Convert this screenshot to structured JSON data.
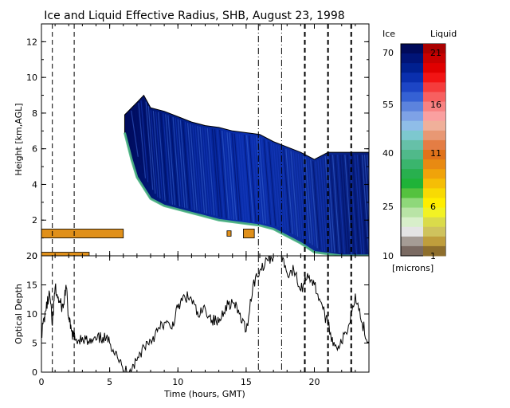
{
  "chart_data": [
    {
      "type": "heatmap",
      "title": "Ice and Liquid Effective Radius, SHB, August 23, 1998",
      "xlabel": "",
      "ylabel": "Height [km,AGL]",
      "xlim": [
        0,
        24
      ],
      "ylim": [
        0,
        13
      ],
      "x_ticks": [
        "0",
        "5",
        "10",
        "15",
        "20"
      ],
      "y_ticks": [
        "0",
        "2",
        "4",
        "6",
        "8",
        "10",
        "12"
      ],
      "grid": false,
      "ice_cloud": {
        "x_start": 6.1,
        "x_end": 24,
        "top": [
          [
            6.1,
            7.9
          ],
          [
            7.0,
            8.6
          ],
          [
            7.5,
            9.0
          ],
          [
            8.0,
            8.3
          ],
          [
            9.0,
            8.1
          ],
          [
            10.0,
            7.8
          ],
          [
            11.0,
            7.5
          ],
          [
            12.0,
            7.3
          ],
          [
            13.0,
            7.2
          ],
          [
            14.0,
            7.0
          ],
          [
            15.0,
            6.9
          ],
          [
            16.0,
            6.8
          ],
          [
            17.0,
            6.4
          ],
          [
            18.0,
            6.1
          ],
          [
            19.0,
            5.8
          ],
          [
            20.0,
            5.4
          ],
          [
            21.0,
            5.8
          ],
          [
            22.0,
            5.8
          ],
          [
            23.0,
            5.8
          ],
          [
            24.0,
            5.8
          ]
        ],
        "base": [
          [
            6.1,
            6.9
          ],
          [
            6.6,
            5.4
          ],
          [
            7.0,
            4.4
          ],
          [
            8.0,
            3.2
          ],
          [
            9.0,
            2.8
          ],
          [
            10.0,
            2.6
          ],
          [
            11.0,
            2.4
          ],
          [
            12.0,
            2.2
          ],
          [
            13.0,
            2.0
          ],
          [
            14.0,
            1.9
          ],
          [
            15.0,
            1.8
          ],
          [
            16.0,
            1.7
          ],
          [
            17.0,
            1.5
          ],
          [
            18.0,
            1.1
          ],
          [
            19.0,
            0.7
          ],
          [
            20.0,
            0.2
          ],
          [
            22.0,
            0.0
          ],
          [
            24.0,
            0.0
          ]
        ],
        "dominant_ice_radius_microns": 55
      },
      "liquid_layers": [
        {
          "x_start": 0.0,
          "x_end": 6.0,
          "base_km": 1.0,
          "top_km": 1.5,
          "radius_microns": 6
        },
        {
          "x_start": 0.0,
          "x_end": 3.5,
          "base_km": 0.0,
          "top_km": 0.2,
          "radius_microns": 6
        },
        {
          "x_start": 13.6,
          "x_end": 13.9,
          "base_km": 1.1,
          "top_km": 1.4,
          "radius_microns": 6
        },
        {
          "x_start": 14.8,
          "x_end": 15.6,
          "base_km": 1.0,
          "top_km": 1.5,
          "radius_microns": 6
        }
      ],
      "vertical_lines": [
        {
          "x": 0.8,
          "style": "dashed"
        },
        {
          "x": 2.4,
          "style": "dashed"
        },
        {
          "x": 15.9,
          "style": "dashdot"
        },
        {
          "x": 17.6,
          "style": "dashdot"
        },
        {
          "x": 19.3,
          "style": "dashed"
        },
        {
          "x": 21.0,
          "style": "dashed"
        },
        {
          "x": 22.7,
          "style": "dashed"
        }
      ]
    },
    {
      "type": "line",
      "title": "",
      "xlabel": "Time (hours, GMT)",
      "ylabel": "Optical Depth",
      "xlim": [
        0,
        24
      ],
      "ylim": [
        0,
        20
      ],
      "x_ticks": [
        "0",
        "5",
        "10",
        "15",
        "20"
      ],
      "y_ticks": [
        "0",
        "5",
        "10",
        "15",
        "20"
      ],
      "grid": false,
      "series": [
        {
          "name": "",
          "x": [
            0,
            0.3,
            0.6,
            0.8,
            1.0,
            1.3,
            1.6,
            1.8,
            2.0,
            2.2,
            2.5,
            3.0,
            3.5,
            4.0,
            4.5,
            5.0,
            5.5,
            6.0,
            6.5,
            7.0,
            7.5,
            8.0,
            8.5,
            9.0,
            9.5,
            10.0,
            10.5,
            11.0,
            11.5,
            12.0,
            12.5,
            13.0,
            13.5,
            14.0,
            14.5,
            15.0,
            15.5,
            16.0,
            16.5,
            17.0,
            17.5,
            18.0,
            18.5,
            19.0,
            19.5,
            20.0,
            20.5,
            21.0,
            21.5,
            22.0,
            22.5,
            23.0,
            23.5,
            24.0
          ],
          "y": [
            6.5,
            10.5,
            13.5,
            8.0,
            14.5,
            12.0,
            11.0,
            15.0,
            9.0,
            7.0,
            5.5,
            6.0,
            5.0,
            5.5,
            6.0,
            5.0,
            3.5,
            0.0,
            0.5,
            2.0,
            4.5,
            5.5,
            7.0,
            8.5,
            7.5,
            11.0,
            13.0,
            12.5,
            9.5,
            11.0,
            9.0,
            8.5,
            11.5,
            12.0,
            10.0,
            7.0,
            15.0,
            17.5,
            19.5,
            20.0,
            21.0,
            17.0,
            17.5,
            14.0,
            17.0,
            15.0,
            12.0,
            8.0,
            4.5,
            5.0,
            8.0,
            13.5,
            8.5,
            5.0
          ]
        }
      ],
      "vertical_lines_x": [
        0.8,
        2.4,
        15.9,
        17.6,
        19.3,
        21.0,
        22.7
      ]
    }
  ],
  "colorbar": {
    "ice_label": "Ice",
    "liquid_label": "Liquid",
    "units": "[microns]",
    "ice_ticks": [
      "70",
      "55",
      "40",
      "25",
      "10"
    ],
    "liquid_ticks": [
      "21",
      "16",
      "11",
      "6",
      "1"
    ],
    "ice_colors": [
      "#000a5a",
      "#001477",
      "#002090",
      "#0a2fae",
      "#1d45c5",
      "#3561d4",
      "#5c83dd",
      "#7ea2e6",
      "#8fbde8",
      "#7dc8cf",
      "#66c0a8",
      "#50b98a",
      "#3ab56d",
      "#28b04e",
      "#1fb338",
      "#55c23f",
      "#8fd87a",
      "#b9e4a6",
      "#d8efca",
      "#e4e4e4",
      "#a59c95",
      "#7a6a62"
    ],
    "liquid_colors": [
      "#aa0000",
      "#c80000",
      "#e00000",
      "#f21414",
      "#f53c3c",
      "#f76060",
      "#f88282",
      "#faa0a0",
      "#f0b09a",
      "#e89874",
      "#e47d44",
      "#e0721a",
      "#e88a12",
      "#f0a30a",
      "#f5be06",
      "#f8da03",
      "#ffee00",
      "#f2f224",
      "#dadb4a",
      "#cfc35d",
      "#bf9e3c",
      "#8e6e2c"
    ]
  }
}
